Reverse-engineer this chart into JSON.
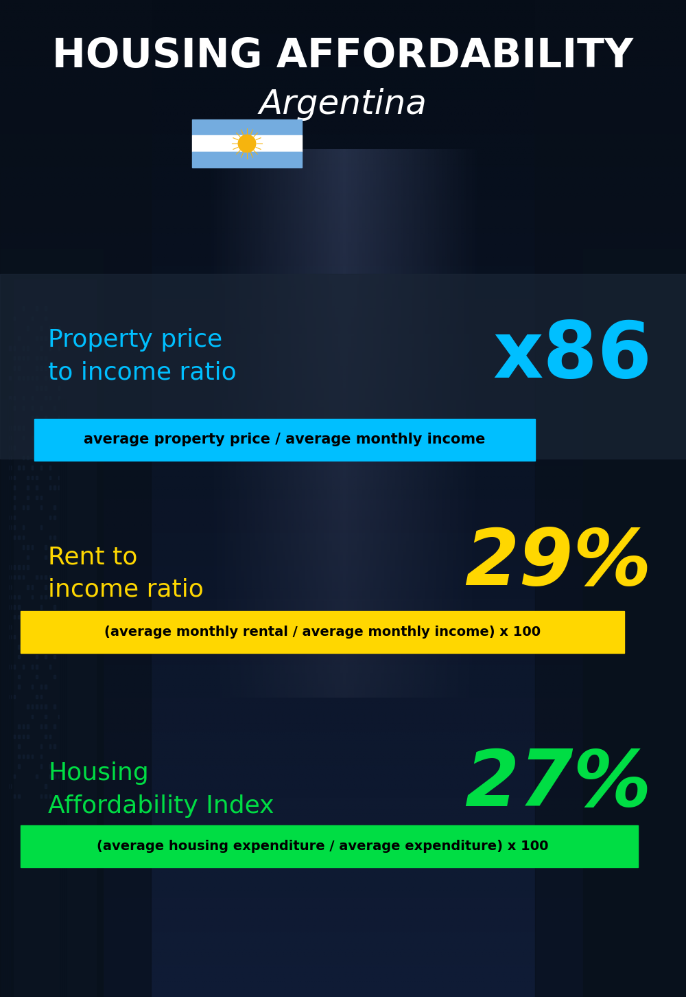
{
  "title_line1": "HOUSING AFFORDABILITY",
  "title_line2": "Argentina",
  "section1_label": "Property price\nto income ratio",
  "section1_value": "x86",
  "section1_sublabel": "average property price / average monthly income",
  "section1_label_color": "#00BFFF",
  "section1_value_color": "#00BFFF",
  "section1_bg_color": "#00BFFF",
  "section2_label": "Rent to\nincome ratio",
  "section2_value": "29%",
  "section2_sublabel": "(average monthly rental / average monthly income) x 100",
  "section2_label_color": "#FFD700",
  "section2_value_color": "#FFD700",
  "section2_bg_color": "#FFD700",
  "section3_label": "Housing\nAffordability Index",
  "section3_value": "27%",
  "section3_sublabel": "(average housing expenditure / average expenditure) x 100",
  "section3_label_color": "#00DD44",
  "section3_value_color": "#00DD44",
  "section3_bg_color": "#00DD44",
  "background_color": "#060d18",
  "title_color": "#FFFFFF",
  "subtitle_color": "#FFFFFF",
  "sublabel_text_color": "#000000",
  "panel1_color": "#1a2a3a",
  "flag_colors": [
    "#74ACDF",
    "#FFFFFF",
    "#74ACDF"
  ],
  "flag_sun_color": "#F6B40E"
}
